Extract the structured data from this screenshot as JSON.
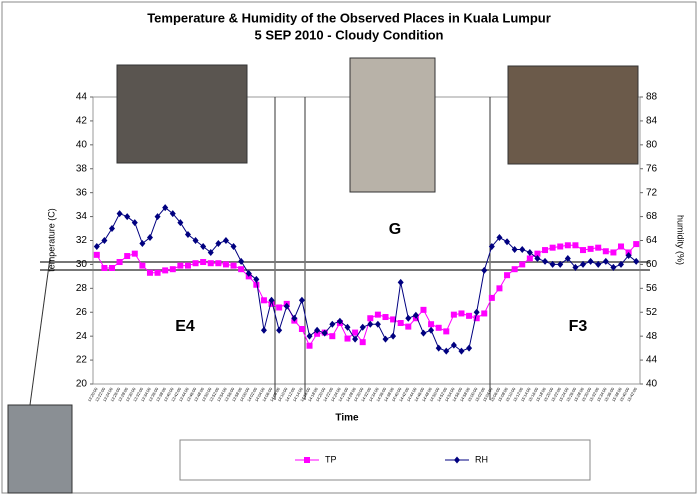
{
  "chart_data": {
    "type": "line",
    "title": "Temperature & Humidity of the Observed Places in Kuala Lumpur",
    "subtitle": "5 SEP 2010 - Cloudy Condition",
    "x_label": "Time",
    "y_label": "temperature (C)",
    "y2_label": "humidity (%)",
    "annotations": [
      "E4",
      "G",
      "F3"
    ],
    "categories": [
      "13:20:00",
      "13:22:00",
      "13:24:00",
      "13:26:00",
      "13:28:00",
      "13:30:00",
      "13:32:00",
      "13:34:00",
      "13:36:00",
      "13:38:00",
      "13:40:00",
      "13:42:00",
      "13:44:00",
      "13:46:00",
      "13:48:00",
      "13:50:00",
      "13:52:00",
      "13:54:00",
      "13:56:00",
      "13:58:00",
      "14:00:00",
      "14:02:00",
      "14:04:00",
      "14:06:00",
      "14:08:00",
      "14:10:00",
      "14:12:00",
      "14:14:00",
      "14:16:00",
      "14:18:00",
      "14:20:00",
      "14:22:00",
      "14:24:00",
      "14:26:00",
      "14:28:00",
      "14:30:00",
      "14:32:00",
      "14:34:00",
      "14:36:00",
      "14:38:00",
      "14:40:00",
      "14:42:00",
      "14:44:00",
      "14:46:00",
      "14:48:00",
      "14:50:00",
      "14:52:00",
      "14:54:00",
      "14:56:00",
      "14:58:00",
      "15:00:00",
      "15:02:00",
      "15:04:00",
      "15:06:00",
      "15:08:00",
      "15:10:00",
      "15:12:00",
      "15:14:00",
      "15:16:00",
      "15:18:00",
      "15:20:00",
      "15:22:00",
      "15:24:00",
      "15:26:00",
      "15:28:00",
      "15:30:00",
      "15:32:00",
      "15:34:00",
      "15:36:00",
      "15:38:00",
      "15:40:00",
      "15:42:00"
    ],
    "series": [
      {
        "name": "TP",
        "color": "#ff00ff",
        "marker": "square",
        "axis": "y",
        "values": [
          30.8,
          29.7,
          29.7,
          30.2,
          30.7,
          30.9,
          29.9,
          29.3,
          29.3,
          29.5,
          29.6,
          29.9,
          29.9,
          30.1,
          30.2,
          30.1,
          30.1,
          30.0,
          29.9,
          29.6,
          29.0,
          28.3,
          27.0,
          26.7,
          26.4,
          26.7,
          25.3,
          24.6,
          23.2,
          24.2,
          24.3,
          24.0,
          25.1,
          23.8,
          24.3,
          23.5,
          25.5,
          25.8,
          25.6,
          25.4,
          25.1,
          24.8,
          25.5,
          26.2,
          25.0,
          24.7,
          24.4,
          25.8,
          25.9,
          25.7,
          25.5,
          25.9,
          27.2,
          28.0,
          29.1,
          29.6,
          30.0,
          30.5,
          30.9,
          31.2,
          31.4,
          31.5,
          31.6,
          31.6,
          31.2,
          31.3,
          31.4,
          31.1,
          31.0,
          31.5,
          31.0,
          31.7
        ]
      },
      {
        "name": "RH",
        "color": "#000080",
        "marker": "diamond",
        "axis": "y2",
        "values": [
          63,
          64,
          66,
          68.5,
          68,
          67,
          63.5,
          64.5,
          68,
          69.5,
          68.5,
          67,
          65,
          64,
          63,
          62,
          63.5,
          64,
          63,
          60.5,
          58.5,
          57.5,
          49,
          54,
          49,
          53,
          51,
          54,
          48,
          49,
          48.5,
          50,
          50.5,
          49.5,
          47.5,
          49.5,
          50,
          50,
          47.5,
          48,
          57,
          51,
          51.5,
          48.5,
          49,
          46,
          45.5,
          46.5,
          45.5,
          46,
          52,
          59,
          63,
          64.5,
          63.8,
          62.5,
          62.5,
          62,
          61,
          60.5,
          60,
          60,
          61,
          59.5,
          60,
          60.5,
          60,
          60.5,
          59.5,
          60,
          61.5,
          60.5
        ]
      }
    ],
    "ylim": [
      20,
      44
    ],
    "yticks": [
      20,
      22,
      24,
      26,
      28,
      30,
      32,
      34,
      36,
      38,
      40,
      42,
      44
    ],
    "y2lim": [
      40,
      88
    ],
    "y2ticks": [
      40,
      44,
      48,
      52,
      56,
      60,
      64,
      68,
      72,
      76,
      80,
      84,
      88
    ],
    "grid": false,
    "legend": "bottom"
  }
}
